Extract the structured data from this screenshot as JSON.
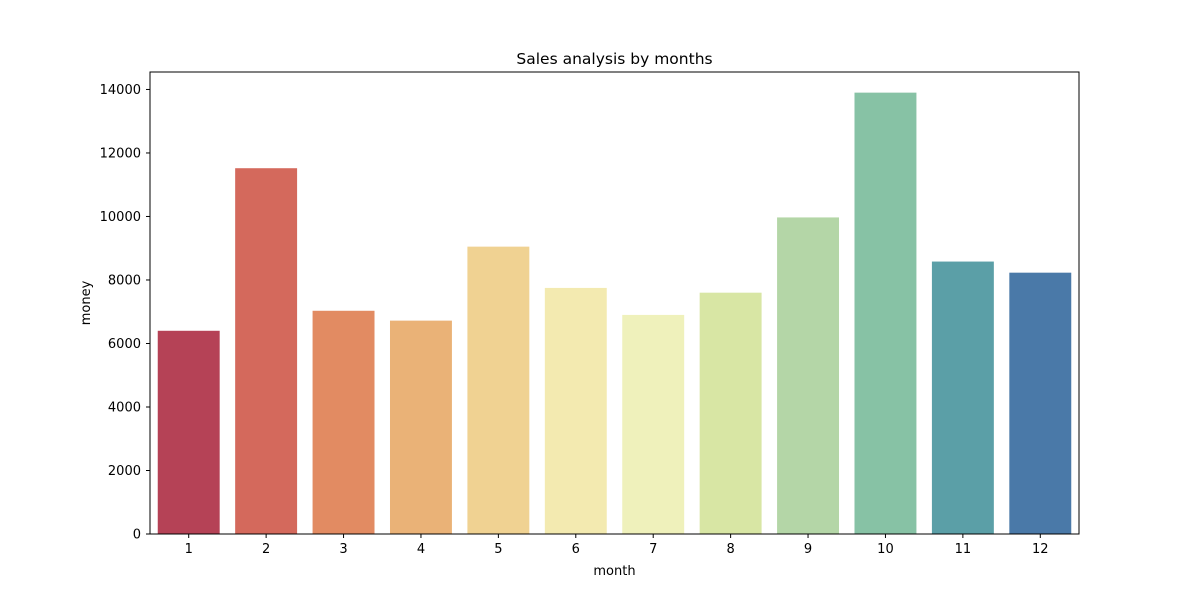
{
  "chart_data": {
    "type": "bar",
    "title": "Sales analysis by months",
    "xlabel": "month",
    "ylabel": "money",
    "categories": [
      "1",
      "2",
      "3",
      "4",
      "5",
      "6",
      "7",
      "8",
      "9",
      "10",
      "11",
      "12"
    ],
    "values": [
      6400,
      11520,
      7030,
      6720,
      9050,
      7750,
      6900,
      7600,
      9970,
      13900,
      8580,
      8230
    ],
    "ylim": [
      0,
      14550
    ],
    "yticks": [
      0,
      2000,
      4000,
      6000,
      8000,
      10000,
      12000,
      14000
    ],
    "grid": false,
    "legend": "none",
    "colors": [
      "#b54256",
      "#d4695c",
      "#e28b62",
      "#eab277",
      "#f0d292",
      "#f3eab0",
      "#eff1bb",
      "#d8e6a4",
      "#b4d6a7",
      "#87c2a5",
      "#5b9fa7",
      "#4a79a8"
    ]
  }
}
